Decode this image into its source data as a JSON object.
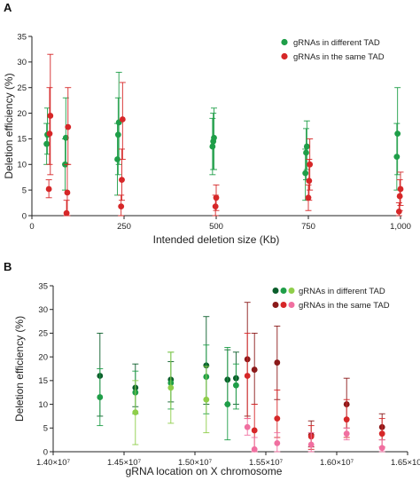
{
  "chart_data": [
    {
      "type": "scatter",
      "panel": "A",
      "xlabel": "Intended deletion size (Kb)",
      "ylabel": "Deletion efficiency (%)",
      "xlim": [
        0,
        1000
      ],
      "ylim": [
        0,
        35
      ],
      "xticks": [
        0,
        250,
        500,
        750,
        1000
      ],
      "xtick_labels": [
        "0",
        "250",
        "500",
        "750",
        "1,000"
      ],
      "yticks": [
        0,
        5,
        10,
        15,
        20,
        25,
        30,
        35
      ],
      "ytick_labels": [
        "0",
        "5",
        "10",
        "15",
        "20",
        "25",
        "30",
        "35"
      ],
      "legend_position": "top-right",
      "series": [
        {
          "name": "gRNAs in different TAD",
          "color": "#1f9e48",
          "points": [
            {
              "x": 40,
              "y": 14,
              "lo": 10,
              "hi": 18
            },
            {
              "x": 42,
              "y": 15.8,
              "lo": 12,
              "hi": 21
            },
            {
              "x": 90,
              "y": 10,
              "lo": 5,
              "hi": 15
            },
            {
              "x": 92,
              "y": 15.2,
              "lo": 10,
              "hi": 23
            },
            {
              "x": 232,
              "y": 11,
              "lo": 4,
              "hi": 18
            },
            {
              "x": 234,
              "y": 15.8,
              "lo": 8,
              "hi": 23
            },
            {
              "x": 236,
              "y": 18.2,
              "lo": 10,
              "hi": 28
            },
            {
              "x": 490,
              "y": 13.5,
              "lo": 8,
              "hi": 19
            },
            {
              "x": 492,
              "y": 14.5,
              "lo": 9,
              "hi": 20
            },
            {
              "x": 494,
              "y": 15.2,
              "lo": 9,
              "hi": 21
            },
            {
              "x": 742,
              "y": 8.3,
              "lo": 3,
              "hi": 13
            },
            {
              "x": 744,
              "y": 12.3,
              "lo": 7,
              "hi": 17
            },
            {
              "x": 746,
              "y": 13.5,
              "lo": 9,
              "hi": 18.5
            },
            {
              "x": 990,
              "y": 11.5,
              "lo": 5,
              "hi": 18
            },
            {
              "x": 992,
              "y": 16,
              "lo": 8,
              "hi": 25
            }
          ]
        },
        {
          "name": "gRNAs in the same TAD",
          "color": "#d62728",
          "points": [
            {
              "x": 46,
              "y": 5.2,
              "lo": 3.5,
              "hi": 7
            },
            {
              "x": 48,
              "y": 16,
              "lo": 10,
              "hi": 25
            },
            {
              "x": 50,
              "y": 19.5,
              "lo": 8,
              "hi": 31.5
            },
            {
              "x": 94,
              "y": 0.5,
              "lo": 0,
              "hi": 3
            },
            {
              "x": 96,
              "y": 4.5,
              "lo": 0,
              "hi": 10
            },
            {
              "x": 98,
              "y": 17.3,
              "lo": 10,
              "hi": 25
            },
            {
              "x": 242,
              "y": 1.8,
              "lo": 0,
              "hi": 4
            },
            {
              "x": 244,
              "y": 7,
              "lo": 3,
              "hi": 13
            },
            {
              "x": 246,
              "y": 18.8,
              "lo": 11,
              "hi": 26
            },
            {
              "x": 498,
              "y": 1.8,
              "lo": 0,
              "hi": 4
            },
            {
              "x": 500,
              "y": 3.5,
              "lo": 1,
              "hi": 6
            },
            {
              "x": 750,
              "y": 3.5,
              "lo": 1,
              "hi": 6
            },
            {
              "x": 752,
              "y": 6.8,
              "lo": 3,
              "hi": 11
            },
            {
              "x": 754,
              "y": 10,
              "lo": 5,
              "hi": 15
            },
            {
              "x": 996,
              "y": 0.8,
              "lo": 0,
              "hi": 2.5
            },
            {
              "x": 998,
              "y": 3.8,
              "lo": 1,
              "hi": 7
            },
            {
              "x": 1000,
              "y": 5.2,
              "lo": 2,
              "hi": 8.5
            }
          ]
        }
      ]
    },
    {
      "type": "scatter",
      "panel": "B",
      "xlabel": "gRNA location on X chromosome",
      "ylabel": "Deletion efficiency (%)",
      "xlim": [
        14000000,
        16500000
      ],
      "ylim": [
        0,
        35
      ],
      "xticks": [
        14000000,
        14500000,
        15000000,
        15500000,
        16000000,
        16500000
      ],
      "xtick_labels": [
        "1.40×10⁷",
        "1.45×10⁷",
        "1.50×10⁷",
        "1.55×10⁷",
        "1.60×10⁷",
        "1.65×10⁷"
      ],
      "yticks": [
        0,
        5,
        10,
        15,
        20,
        25,
        30,
        35
      ],
      "ytick_labels": [
        "0",
        "5",
        "10",
        "15",
        "20",
        "25",
        "30",
        "35"
      ],
      "legend_position": "top-right",
      "legend_swatches": [
        [
          "#0b5e2b",
          "#1f9e48",
          "#8fce4a"
        ],
        [
          "#8b1a1a",
          "#d62728",
          "#f06fa0"
        ]
      ],
      "series": [
        {
          "name": "gRNAs in different TAD",
          "points": [
            {
              "x": 14330000,
              "y": 16,
              "lo": 7.5,
              "hi": 25,
              "color": "#0b5e2b"
            },
            {
              "x": 14330000,
              "y": 11.5,
              "lo": 5.5,
              "hi": 17.5,
              "color": "#1f9e48"
            },
            {
              "x": 14580000,
              "y": 13.5,
              "lo": 9.5,
              "hi": 18.5,
              "color": "#0b5e2b"
            },
            {
              "x": 14580000,
              "y": 12.5,
              "lo": 8,
              "hi": 17,
              "color": "#1f9e48"
            },
            {
              "x": 14580000,
              "y": 8.3,
              "lo": 1.5,
              "hi": 15,
              "color": "#8fce4a"
            },
            {
              "x": 14830000,
              "y": 15.2,
              "lo": 10.5,
              "hi": 19,
              "color": "#0b5e2b"
            },
            {
              "x": 14830000,
              "y": 14.5,
              "lo": 9,
              "hi": 21,
              "color": "#1f9e48"
            },
            {
              "x": 14830000,
              "y": 13.5,
              "lo": 6,
              "hi": 21,
              "color": "#8fce4a"
            },
            {
              "x": 15080000,
              "y": 18.2,
              "lo": 10,
              "hi": 28.5,
              "color": "#0b5e2b"
            },
            {
              "x": 15080000,
              "y": 15.8,
              "lo": 8,
              "hi": 22.5,
              "color": "#1f9e48"
            },
            {
              "x": 15080000,
              "y": 11,
              "lo": 4,
              "hi": 18,
              "color": "#8fce4a"
            },
            {
              "x": 15230000,
              "y": 15.2,
              "lo": 10,
              "hi": 21.5,
              "color": "#0b5e2b"
            },
            {
              "x": 15230000,
              "y": 10,
              "lo": 2.5,
              "hi": 22,
              "color": "#1f9e48"
            },
            {
              "x": 15290000,
              "y": 15.5,
              "lo": 10,
              "hi": 21,
              "color": "#0b5e2b"
            },
            {
              "x": 15290000,
              "y": 14,
              "lo": 9,
              "hi": 18.5,
              "color": "#1f9e48"
            }
          ]
        },
        {
          "name": "gRNAs in the same TAD",
          "points": [
            {
              "x": 15370000,
              "y": 19.5,
              "lo": 7.5,
              "hi": 31.5,
              "color": "#8b1a1a"
            },
            {
              "x": 15370000,
              "y": 16,
              "lo": 7,
              "hi": 25,
              "color": "#d62728"
            },
            {
              "x": 15370000,
              "y": 5.2,
              "lo": 3.5,
              "hi": 7,
              "color": "#f06fa0"
            },
            {
              "x": 15420000,
              "y": 17.3,
              "lo": 10,
              "hi": 25,
              "color": "#8b1a1a"
            },
            {
              "x": 15420000,
              "y": 4.5,
              "lo": 0,
              "hi": 10,
              "color": "#d62728"
            },
            {
              "x": 15420000,
              "y": 0.5,
              "lo": 0,
              "hi": 3,
              "color": "#f06fa0"
            },
            {
              "x": 15580000,
              "y": 18.8,
              "lo": 11,
              "hi": 26.5,
              "color": "#8b1a1a"
            },
            {
              "x": 15580000,
              "y": 7,
              "lo": 3,
              "hi": 13,
              "color": "#d62728"
            },
            {
              "x": 15580000,
              "y": 1.8,
              "lo": 0,
              "hi": 4,
              "color": "#f06fa0"
            },
            {
              "x": 15820000,
              "y": 3.5,
              "lo": 1,
              "hi": 6.5,
              "color": "#8b1a1a"
            },
            {
              "x": 15820000,
              "y": 3.2,
              "lo": 0.5,
              "hi": 5.5,
              "color": "#d62728"
            },
            {
              "x": 15820000,
              "y": 1.5,
              "lo": 0,
              "hi": 4,
              "color": "#f06fa0"
            },
            {
              "x": 16070000,
              "y": 10,
              "lo": 5,
              "hi": 15.5,
              "color": "#8b1a1a"
            },
            {
              "x": 16070000,
              "y": 6.8,
              "lo": 3,
              "hi": 11,
              "color": "#d62728"
            },
            {
              "x": 16070000,
              "y": 3.8,
              "lo": 2.5,
              "hi": 5,
              "color": "#f06fa0"
            },
            {
              "x": 16320000,
              "y": 5.2,
              "lo": 2.5,
              "hi": 8,
              "color": "#8b1a1a"
            },
            {
              "x": 16320000,
              "y": 3.8,
              "lo": 1,
              "hi": 7,
              "color": "#d62728"
            },
            {
              "x": 16320000,
              "y": 0.8,
              "lo": 0,
              "hi": 2.5,
              "color": "#f06fa0"
            }
          ]
        }
      ]
    }
  ]
}
